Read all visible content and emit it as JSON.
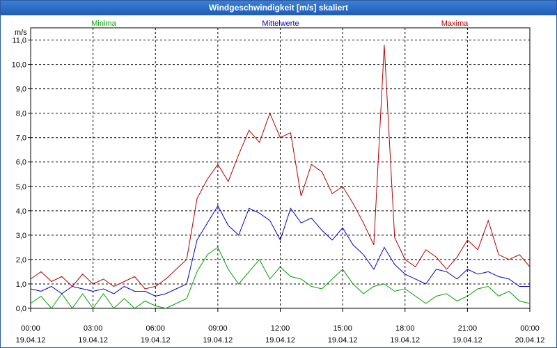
{
  "window": {
    "title": "Windgeschwindigkeit [m/s] skaliert"
  },
  "chart_data": {
    "type": "line",
    "title": "Windgeschwindigkeit [m/s] skaliert",
    "ylabel": "m/s",
    "xlabel": "",
    "ylim": [
      0,
      11.5
    ],
    "y_ticks": [
      "0,0",
      "1,0",
      "2,0",
      "3,0",
      "4,0",
      "5,0",
      "6,0",
      "7,0",
      "8,0",
      "9,0",
      "10,0",
      "11,0"
    ],
    "x_ticks": [
      {
        "time": "00:00",
        "date": "19.04.12"
      },
      {
        "time": "03:00",
        "date": "19.04.12"
      },
      {
        "time": "06:00",
        "date": "19.04.12"
      },
      {
        "time": "09:00",
        "date": "19.04.12"
      },
      {
        "time": "12:00",
        "date": "19.04.12"
      },
      {
        "time": "15:00",
        "date": "19.04.12"
      },
      {
        "time": "18:00",
        "date": "19.04.12"
      },
      {
        "time": "21:00",
        "date": "19.04.12"
      },
      {
        "time": "00:00",
        "date": "20.04.12"
      }
    ],
    "grid": true,
    "x_range_hours": [
      0,
      24
    ],
    "series": [
      {
        "name": "Minima",
        "color": "#00a000",
        "x": [
          0,
          0.5,
          1,
          1.5,
          2,
          2.5,
          3,
          3.5,
          4,
          4.5,
          5,
          5.5,
          6,
          6.5,
          7,
          7.5,
          8,
          8.5,
          9,
          9.5,
          10,
          10.5,
          11,
          11.5,
          12,
          12.5,
          13,
          13.5,
          14,
          14.5,
          15,
          15.5,
          16,
          16.5,
          17,
          17.5,
          18,
          18.5,
          19,
          19.5,
          20,
          20.5,
          21,
          21.5,
          22,
          22.5,
          23,
          23.5,
          24
        ],
        "values": [
          0.2,
          0.5,
          0.0,
          0.6,
          0.0,
          0.6,
          0.0,
          0.6,
          0.0,
          0.4,
          0.0,
          0.3,
          0.1,
          0.0,
          0.2,
          0.4,
          1.5,
          2.2,
          2.5,
          1.6,
          1.0,
          1.5,
          2.0,
          1.2,
          1.7,
          1.3,
          1.2,
          0.9,
          0.8,
          1.2,
          1.6,
          1.0,
          0.6,
          0.9,
          1.0,
          0.7,
          0.8,
          0.5,
          0.2,
          0.5,
          0.6,
          0.3,
          0.5,
          0.8,
          0.9,
          0.5,
          0.7,
          0.3,
          0.2
        ]
      },
      {
        "name": "Mittelwerte",
        "color": "#0000c8",
        "x": [
          0,
          0.5,
          1,
          1.5,
          2,
          2.5,
          3,
          3.5,
          4,
          4.5,
          5,
          5.5,
          6,
          6.5,
          7,
          7.5,
          8,
          8.5,
          9,
          9.5,
          10,
          10.5,
          11,
          11.5,
          12,
          12.5,
          13,
          13.5,
          14,
          14.5,
          15,
          15.5,
          16,
          16.5,
          17,
          17.5,
          18,
          18.5,
          19,
          19.5,
          20,
          20.5,
          21,
          21.5,
          22,
          22.5,
          23,
          23.5,
          24
        ],
        "values": [
          0.8,
          0.7,
          0.9,
          0.6,
          0.9,
          0.8,
          0.7,
          0.8,
          0.6,
          0.9,
          0.7,
          0.7,
          0.5,
          0.6,
          0.8,
          1.0,
          2.8,
          3.5,
          4.2,
          3.4,
          3.0,
          4.1,
          3.9,
          3.6,
          2.8,
          4.1,
          3.5,
          3.7,
          3.2,
          2.8,
          3.3,
          2.6,
          2.2,
          1.6,
          2.5,
          1.8,
          1.4,
          1.2,
          1.0,
          1.6,
          1.5,
          1.2,
          1.6,
          1.4,
          1.5,
          1.3,
          1.2,
          0.9,
          0.9
        ]
      },
      {
        "name": "Maxima",
        "color": "#b00000",
        "x": [
          0,
          0.5,
          1,
          1.5,
          2,
          2.5,
          3,
          3.5,
          4,
          4.5,
          5,
          5.5,
          6,
          6.5,
          7,
          7.5,
          8,
          8.5,
          9,
          9.5,
          10,
          10.5,
          11,
          11.5,
          12,
          12.5,
          13,
          13.5,
          14,
          14.5,
          15,
          15.5,
          16,
          16.5,
          17,
          17.5,
          18,
          18.5,
          19,
          19.5,
          20,
          20.5,
          21,
          21.5,
          22,
          22.5,
          23,
          23.5,
          24
        ],
        "values": [
          1.2,
          1.5,
          1.1,
          1.3,
          0.9,
          1.4,
          1.0,
          1.2,
          0.9,
          1.1,
          1.3,
          0.8,
          0.9,
          1.2,
          1.6,
          2.0,
          4.5,
          5.3,
          5.9,
          5.2,
          6.3,
          7.3,
          6.8,
          8.0,
          7.0,
          7.2,
          4.6,
          5.9,
          5.6,
          4.7,
          5.0,
          4.3,
          3.5,
          2.6,
          10.8,
          2.9,
          2.0,
          1.7,
          2.4,
          2.1,
          1.6,
          2.1,
          2.8,
          2.4,
          3.6,
          2.2,
          2.0,
          2.2,
          1.7
        ]
      }
    ]
  }
}
